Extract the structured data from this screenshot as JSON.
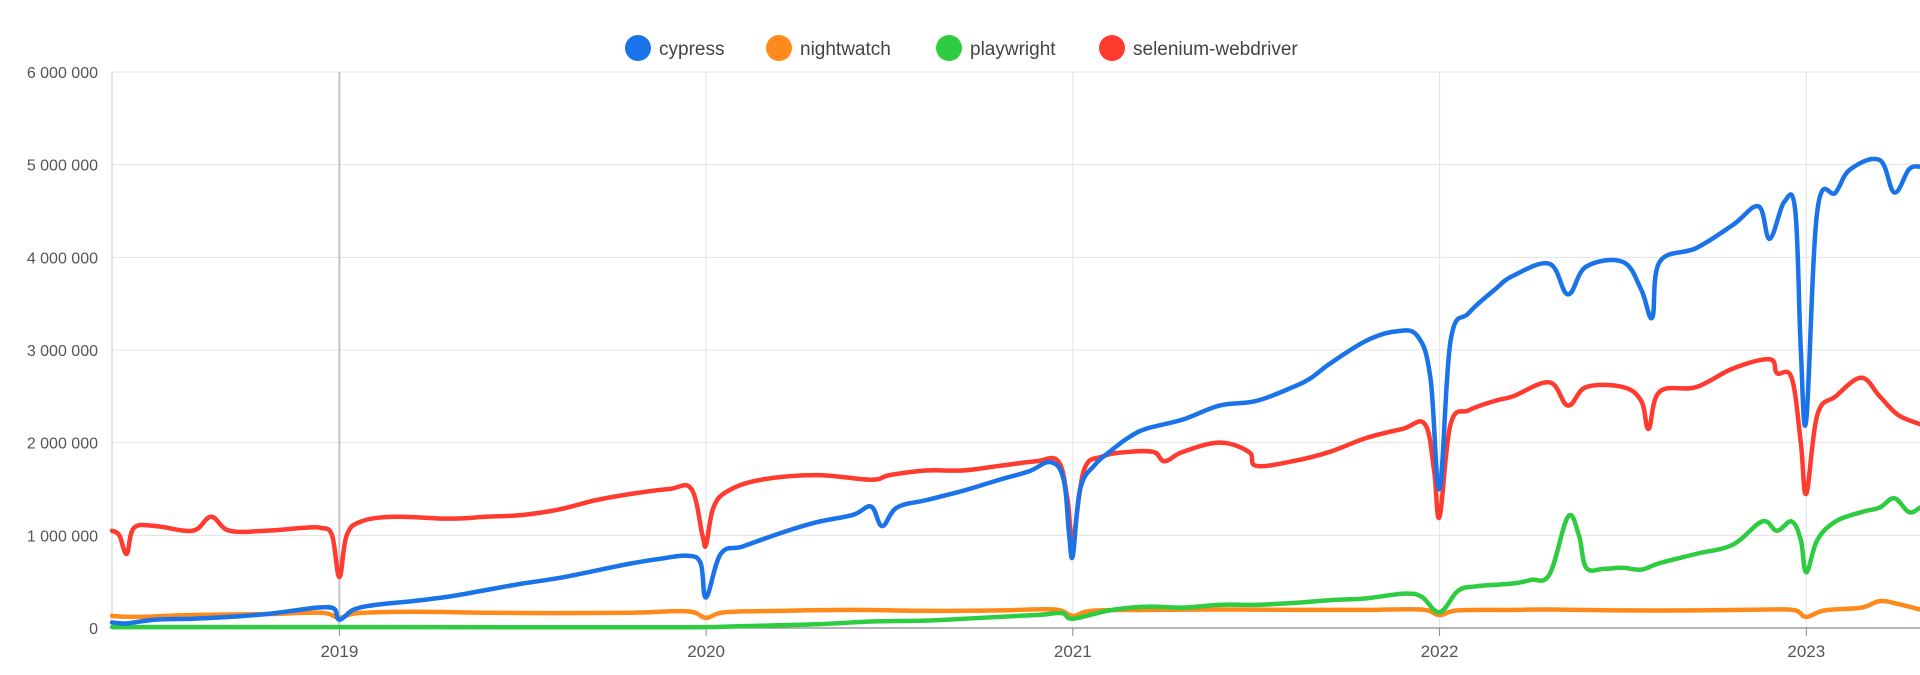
{
  "chart_data": {
    "type": "line",
    "title": "",
    "xlabel": "",
    "ylabel": "",
    "ylim": [
      0,
      6000000
    ],
    "xlim": [
      2018.38,
      2023.31
    ],
    "grid": true,
    "legend_position": "top-center",
    "y_ticks": [
      0,
      1000000,
      2000000,
      3000000,
      4000000,
      5000000,
      6000000
    ],
    "y_tick_labels": [
      "0",
      "1 000 000",
      "2 000 000",
      "3 000 000",
      "4 000 000",
      "5 000 000",
      "6 000 000"
    ],
    "x_ticks": [
      2019,
      2020,
      2021,
      2022,
      2023
    ],
    "x_tick_labels": [
      "2019",
      "2020",
      "2021",
      "2022",
      "2023"
    ],
    "series": [
      {
        "name": "cypress",
        "color": "#1a73e8",
        "points": [
          [
            2018.38,
            60000
          ],
          [
            2018.42,
            50000
          ],
          [
            2018.5,
            90000
          ],
          [
            2018.6,
            100000
          ],
          [
            2018.7,
            120000
          ],
          [
            2018.8,
            150000
          ],
          [
            2018.88,
            190000
          ],
          [
            2018.94,
            220000
          ],
          [
            2018.985,
            210000
          ],
          [
            2019.0,
            90000
          ],
          [
            2019.04,
            200000
          ],
          [
            2019.1,
            250000
          ],
          [
            2019.2,
            290000
          ],
          [
            2019.3,
            340000
          ],
          [
            2019.4,
            410000
          ],
          [
            2019.5,
            480000
          ],
          [
            2019.6,
            540000
          ],
          [
            2019.7,
            620000
          ],
          [
            2019.8,
            700000
          ],
          [
            2019.88,
            750000
          ],
          [
            2019.95,
            780000
          ],
          [
            2019.985,
            700000
          ],
          [
            2020.0,
            330000
          ],
          [
            2020.04,
            800000
          ],
          [
            2020.1,
            880000
          ],
          [
            2020.2,
            1020000
          ],
          [
            2020.3,
            1140000
          ],
          [
            2020.4,
            1220000
          ],
          [
            2020.45,
            1310000
          ],
          [
            2020.48,
            1100000
          ],
          [
            2020.52,
            1300000
          ],
          [
            2020.6,
            1380000
          ],
          [
            2020.7,
            1480000
          ],
          [
            2020.8,
            1600000
          ],
          [
            2020.88,
            1690000
          ],
          [
            2020.94,
            1790000
          ],
          [
            2020.975,
            1600000
          ],
          [
            2020.99,
            1000000
          ],
          [
            2021.0,
            780000
          ],
          [
            2021.02,
            1500000
          ],
          [
            2021.06,
            1760000
          ],
          [
            2021.1,
            1900000
          ],
          [
            2021.15,
            2050000
          ],
          [
            2021.2,
            2150000
          ],
          [
            2021.3,
            2250000
          ],
          [
            2021.4,
            2400000
          ],
          [
            2021.5,
            2450000
          ],
          [
            2021.6,
            2600000
          ],
          [
            2021.65,
            2700000
          ],
          [
            2021.7,
            2850000
          ],
          [
            2021.8,
            3100000
          ],
          [
            2021.88,
            3200000
          ],
          [
            2021.94,
            3150000
          ],
          [
            2021.975,
            2700000
          ],
          [
            2022.0,
            1500000
          ],
          [
            2022.03,
            3100000
          ],
          [
            2022.08,
            3400000
          ],
          [
            2022.15,
            3650000
          ],
          [
            2022.2,
            3800000
          ],
          [
            2022.3,
            3930000
          ],
          [
            2022.35,
            3600000
          ],
          [
            2022.4,
            3900000
          ],
          [
            2022.5,
            3950000
          ],
          [
            2022.55,
            3650000
          ],
          [
            2022.58,
            3350000
          ],
          [
            2022.6,
            3950000
          ],
          [
            2022.7,
            4100000
          ],
          [
            2022.8,
            4350000
          ],
          [
            2022.87,
            4550000
          ],
          [
            2022.9,
            4200000
          ],
          [
            2022.94,
            4600000
          ],
          [
            2022.97,
            4500000
          ],
          [
            2022.985,
            3000000
          ],
          [
            2023.0,
            2250000
          ],
          [
            2023.03,
            4500000
          ],
          [
            2023.08,
            4700000
          ],
          [
            2023.12,
            4950000
          ],
          [
            2023.2,
            5050000
          ],
          [
            2023.24,
            4700000
          ],
          [
            2023.28,
            4950000
          ],
          [
            2023.31,
            4980000
          ]
        ]
      },
      {
        "name": "nightwatch",
        "color": "#ff8a1c",
        "points": [
          [
            2018.38,
            130000
          ],
          [
            2018.45,
            120000
          ],
          [
            2018.6,
            140000
          ],
          [
            2018.8,
            150000
          ],
          [
            2018.95,
            165000
          ],
          [
            2019.0,
            110000
          ],
          [
            2019.05,
            160000
          ],
          [
            2019.2,
            175000
          ],
          [
            2019.4,
            165000
          ],
          [
            2019.6,
            160000
          ],
          [
            2019.8,
            165000
          ],
          [
            2019.95,
            180000
          ],
          [
            2020.0,
            110000
          ],
          [
            2020.05,
            170000
          ],
          [
            2020.2,
            185000
          ],
          [
            2020.4,
            195000
          ],
          [
            2020.6,
            185000
          ],
          [
            2020.8,
            190000
          ],
          [
            2020.95,
            200000
          ],
          [
            2021.0,
            130000
          ],
          [
            2021.05,
            185000
          ],
          [
            2021.2,
            195000
          ],
          [
            2021.4,
            200000
          ],
          [
            2021.6,
            195000
          ],
          [
            2021.8,
            195000
          ],
          [
            2021.95,
            200000
          ],
          [
            2022.0,
            140000
          ],
          [
            2022.05,
            190000
          ],
          [
            2022.2,
            195000
          ],
          [
            2022.3,
            200000
          ],
          [
            2022.5,
            190000
          ],
          [
            2022.7,
            190000
          ],
          [
            2022.9,
            200000
          ],
          [
            2022.97,
            190000
          ],
          [
            2023.0,
            120000
          ],
          [
            2023.05,
            190000
          ],
          [
            2023.15,
            220000
          ],
          [
            2023.2,
            290000
          ],
          [
            2023.25,
            260000
          ],
          [
            2023.31,
            200000
          ]
        ]
      },
      {
        "name": "playwright",
        "color": "#2ecc40",
        "points": [
          [
            2018.38,
            10000
          ],
          [
            2018.8,
            10000
          ],
          [
            2019.5,
            8000
          ],
          [
            2019.95,
            8000
          ],
          [
            2020.1,
            20000
          ],
          [
            2020.3,
            40000
          ],
          [
            2020.45,
            70000
          ],
          [
            2020.6,
            80000
          ],
          [
            2020.75,
            110000
          ],
          [
            2020.9,
            140000
          ],
          [
            2020.97,
            160000
          ],
          [
            2021.0,
            100000
          ],
          [
            2021.1,
            190000
          ],
          [
            2021.2,
            230000
          ],
          [
            2021.3,
            220000
          ],
          [
            2021.4,
            250000
          ],
          [
            2021.5,
            250000
          ],
          [
            2021.6,
            270000
          ],
          [
            2021.7,
            300000
          ],
          [
            2021.8,
            320000
          ],
          [
            2021.9,
            370000
          ],
          [
            2021.95,
            340000
          ],
          [
            2022.0,
            170000
          ],
          [
            2022.05,
            400000
          ],
          [
            2022.1,
            450000
          ],
          [
            2022.2,
            480000
          ],
          [
            2022.25,
            520000
          ],
          [
            2022.3,
            580000
          ],
          [
            2022.35,
            1200000
          ],
          [
            2022.38,
            1000000
          ],
          [
            2022.4,
            650000
          ],
          [
            2022.45,
            640000
          ],
          [
            2022.5,
            650000
          ],
          [
            2022.55,
            630000
          ],
          [
            2022.6,
            700000
          ],
          [
            2022.7,
            800000
          ],
          [
            2022.8,
            900000
          ],
          [
            2022.88,
            1150000
          ],
          [
            2022.92,
            1050000
          ],
          [
            2022.96,
            1150000
          ],
          [
            2022.985,
            950000
          ],
          [
            2023.0,
            600000
          ],
          [
            2023.03,
            950000
          ],
          [
            2023.08,
            1150000
          ],
          [
            2023.15,
            1250000
          ],
          [
            2023.2,
            1300000
          ],
          [
            2023.24,
            1400000
          ],
          [
            2023.28,
            1250000
          ],
          [
            2023.31,
            1300000
          ]
        ]
      },
      {
        "name": "selenium-webdriver",
        "color": "#ff3b30",
        "points": [
          [
            2018.38,
            1050000
          ],
          [
            2018.4,
            1000000
          ],
          [
            2018.42,
            800000
          ],
          [
            2018.44,
            1080000
          ],
          [
            2018.5,
            1100000
          ],
          [
            2018.6,
            1050000
          ],
          [
            2018.65,
            1200000
          ],
          [
            2018.7,
            1050000
          ],
          [
            2018.8,
            1050000
          ],
          [
            2018.9,
            1080000
          ],
          [
            2018.95,
            1080000
          ],
          [
            2018.98,
            1000000
          ],
          [
            2019.0,
            550000
          ],
          [
            2019.02,
            1000000
          ],
          [
            2019.06,
            1150000
          ],
          [
            2019.15,
            1200000
          ],
          [
            2019.3,
            1180000
          ],
          [
            2019.4,
            1200000
          ],
          [
            2019.5,
            1220000
          ],
          [
            2019.6,
            1280000
          ],
          [
            2019.7,
            1380000
          ],
          [
            2019.8,
            1450000
          ],
          [
            2019.9,
            1500000
          ],
          [
            2019.96,
            1500000
          ],
          [
            2019.99,
            1000000
          ],
          [
            2020.0,
            900000
          ],
          [
            2020.02,
            1300000
          ],
          [
            2020.06,
            1480000
          ],
          [
            2020.15,
            1600000
          ],
          [
            2020.3,
            1650000
          ],
          [
            2020.45,
            1600000
          ],
          [
            2020.5,
            1650000
          ],
          [
            2020.6,
            1700000
          ],
          [
            2020.7,
            1700000
          ],
          [
            2020.8,
            1750000
          ],
          [
            2020.9,
            1800000
          ],
          [
            2020.96,
            1800000
          ],
          [
            2020.985,
            1400000
          ],
          [
            2021.0,
            950000
          ],
          [
            2021.03,
            1700000
          ],
          [
            2021.08,
            1850000
          ],
          [
            2021.15,
            1900000
          ],
          [
            2021.22,
            1900000
          ],
          [
            2021.25,
            1800000
          ],
          [
            2021.3,
            1900000
          ],
          [
            2021.4,
            2000000
          ],
          [
            2021.48,
            1900000
          ],
          [
            2021.5,
            1750000
          ],
          [
            2021.6,
            1800000
          ],
          [
            2021.7,
            1900000
          ],
          [
            2021.8,
            2050000
          ],
          [
            2021.9,
            2150000
          ],
          [
            2021.96,
            2200000
          ],
          [
            2021.985,
            1700000
          ],
          [
            2022.0,
            1200000
          ],
          [
            2022.03,
            2200000
          ],
          [
            2022.08,
            2350000
          ],
          [
            2022.15,
            2450000
          ],
          [
            2022.2,
            2500000
          ],
          [
            2022.3,
            2650000
          ],
          [
            2022.35,
            2400000
          ],
          [
            2022.4,
            2600000
          ],
          [
            2022.5,
            2600000
          ],
          [
            2022.55,
            2450000
          ],
          [
            2022.57,
            2150000
          ],
          [
            2022.6,
            2550000
          ],
          [
            2022.7,
            2600000
          ],
          [
            2022.8,
            2800000
          ],
          [
            2022.9,
            2900000
          ],
          [
            2022.92,
            2750000
          ],
          [
            2022.96,
            2700000
          ],
          [
            2022.985,
            2000000
          ],
          [
            2023.0,
            1450000
          ],
          [
            2023.03,
            2300000
          ],
          [
            2023.08,
            2500000
          ],
          [
            2023.15,
            2700000
          ],
          [
            2023.2,
            2500000
          ],
          [
            2023.25,
            2300000
          ],
          [
            2023.31,
            2200000
          ]
        ]
      }
    ]
  }
}
